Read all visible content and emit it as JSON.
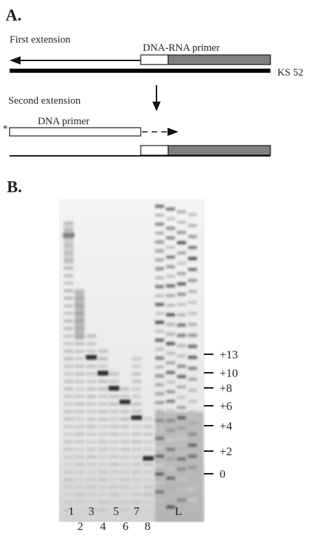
{
  "panel_a": {
    "label": "A.",
    "first_extension": "First extension",
    "dna_rna_primer": "DNA-RNA primer",
    "template": "KS 52",
    "second_extension": "Second extension",
    "asterisk": "*",
    "dna_primer": "DNA primer"
  },
  "panel_b": {
    "label": "B.",
    "markers": [
      "+13",
      "+10",
      "+8",
      "+6",
      "+4",
      "+2",
      "0"
    ],
    "lanes": [
      "1",
      "2",
      "3",
      "4",
      "5",
      "6",
      "7",
      "8",
      "L"
    ]
  }
}
